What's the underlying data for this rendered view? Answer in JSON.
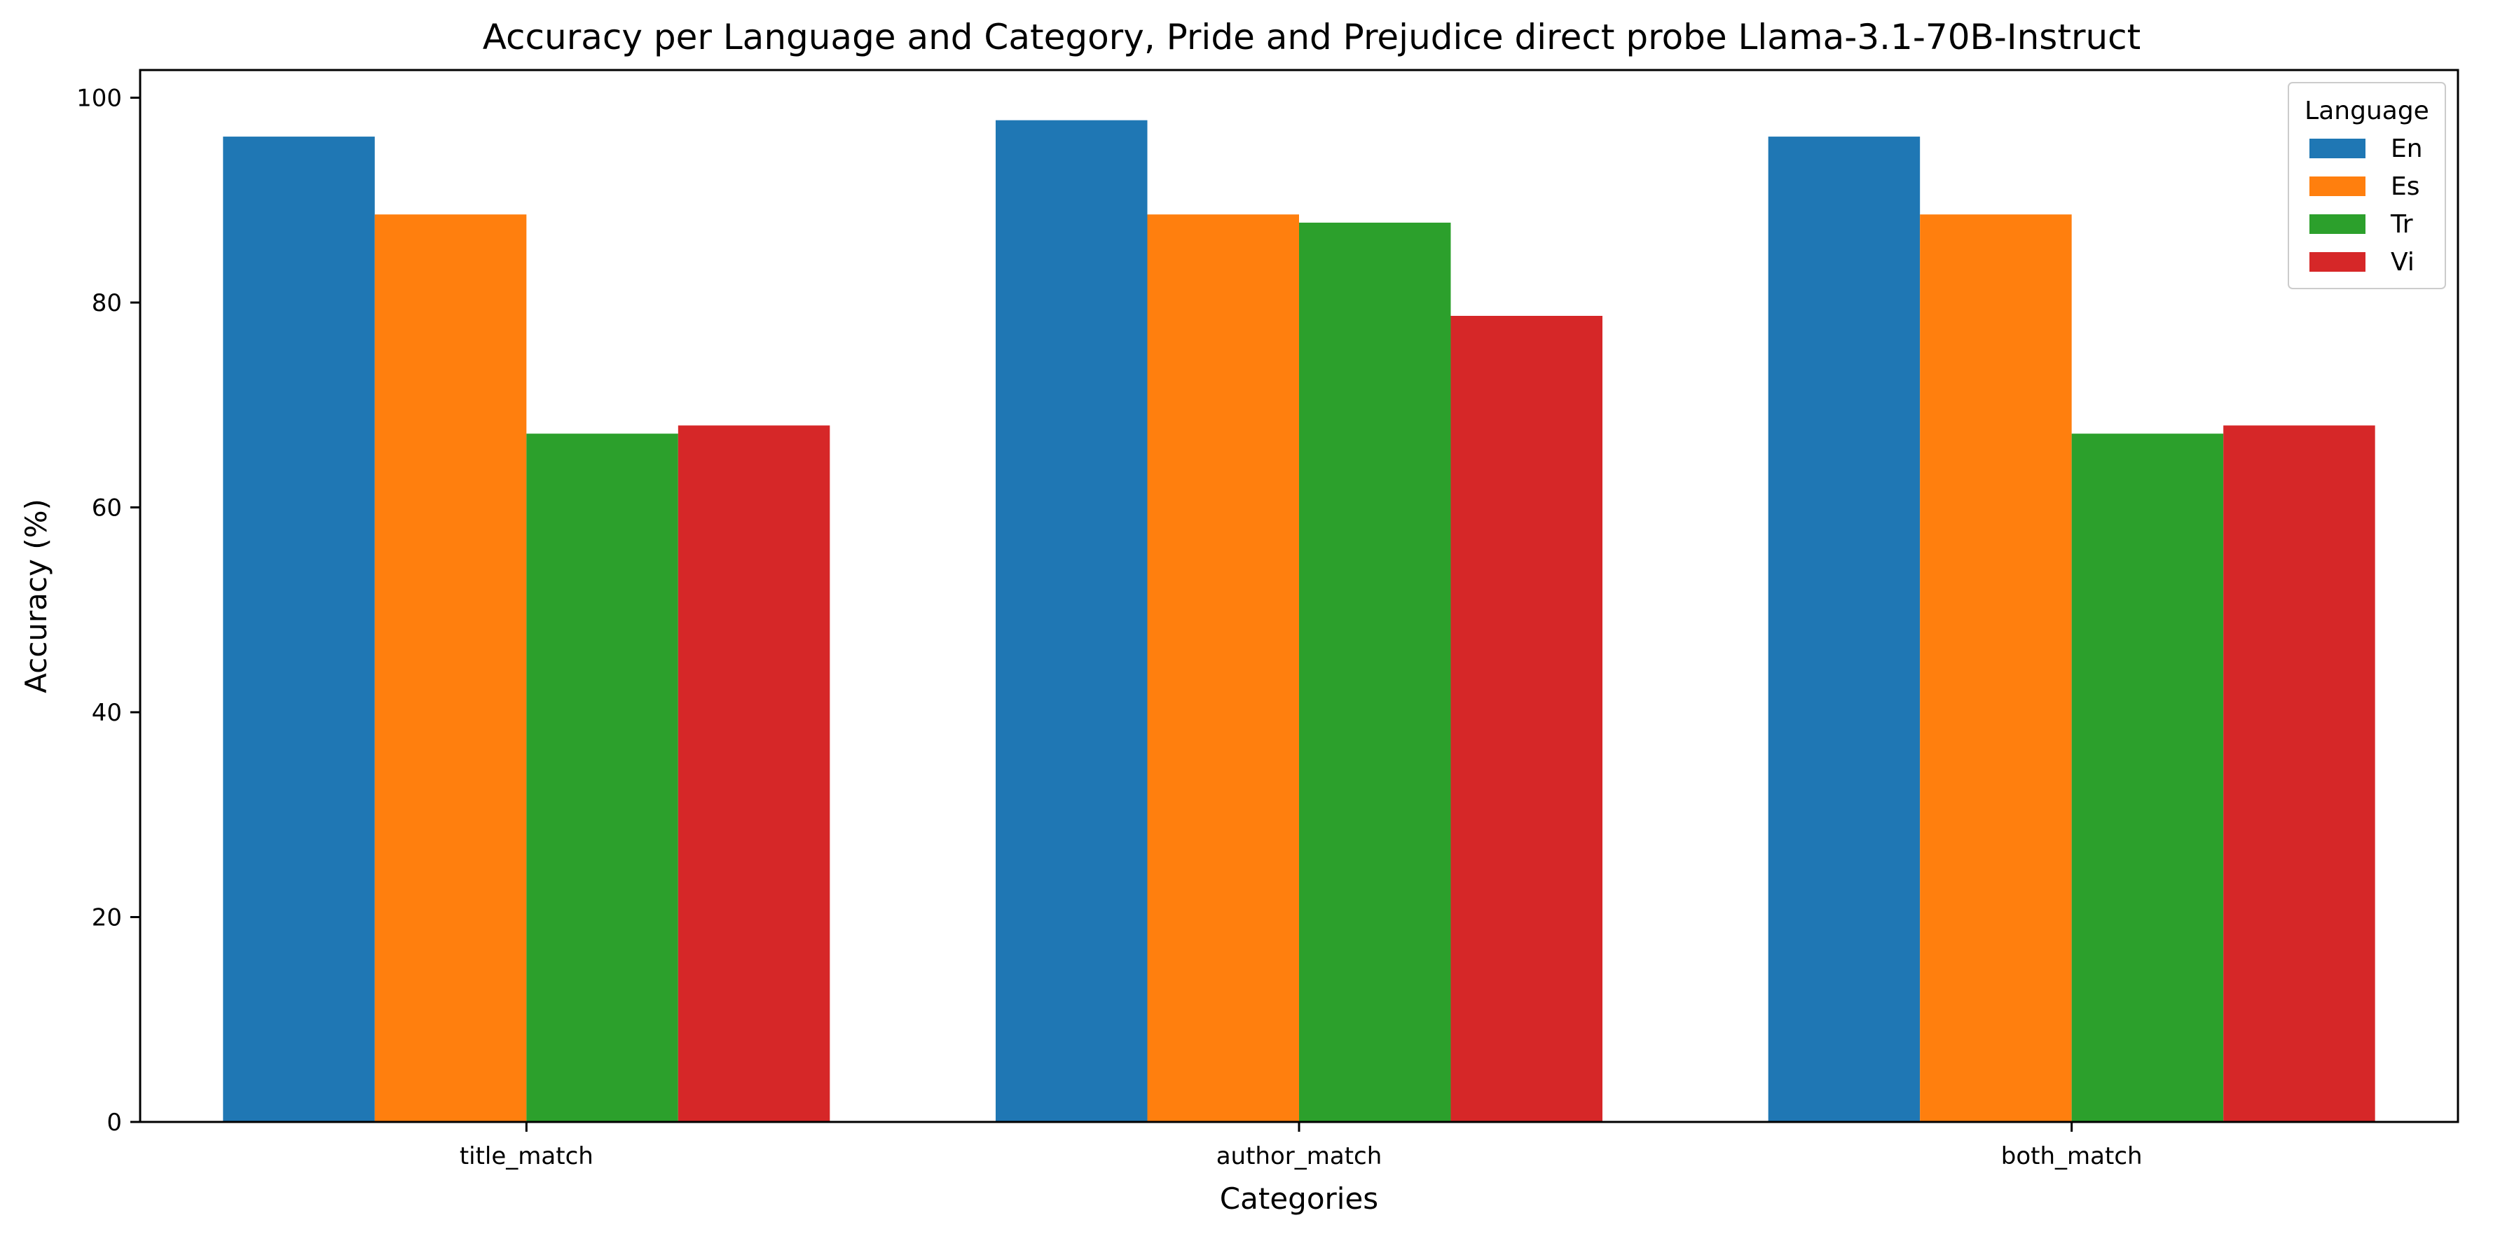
{
  "chart_data": {
    "type": "bar",
    "title": "Accuracy per Language and Category, Pride and Prejudice direct probe Llama-3.1-70B-Instruct",
    "xlabel": "Categories",
    "ylabel": "Accuracy (%)",
    "categories": [
      "title_match",
      "author_match",
      "both_match"
    ],
    "series": [
      {
        "name": "En",
        "color": "#1f77b4",
        "values": [
          96.2,
          97.8,
          96.2
        ]
      },
      {
        "name": "Es",
        "color": "#ff7f0e",
        "values": [
          88.6,
          88.6,
          88.6
        ]
      },
      {
        "name": "Tr",
        "color": "#2ca02c",
        "values": [
          67.2,
          87.8,
          67.2
        ]
      },
      {
        "name": "Vi",
        "color": "#d62728",
        "values": [
          68.0,
          78.7,
          68.0
        ]
      }
    ],
    "ylim": [
      0,
      102.7
    ],
    "yticks": [
      0,
      20,
      40,
      60,
      80,
      100
    ],
    "grid": false,
    "legend": {
      "title": "Language",
      "placement": "top-right"
    }
  }
}
